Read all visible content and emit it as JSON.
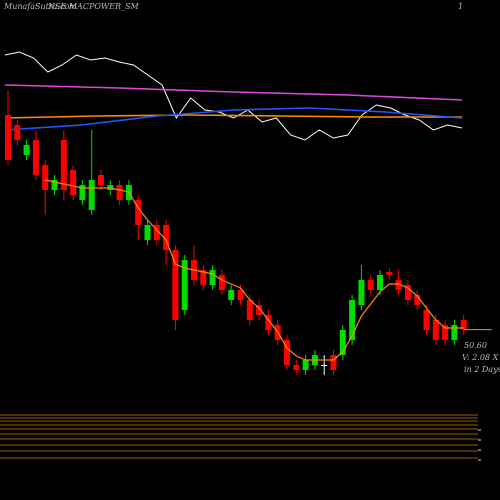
{
  "chart_data": {
    "type": "candlestick",
    "title": "MunafaSutra.com",
    "subtitle": "NSE MACPOWER_SM",
    "corner_label": "1",
    "price_label": "50.60",
    "volume_label": "V: 2.08 X",
    "period_label": "in 2 Days",
    "up_color": "#00dd00",
    "down_color": "#ff0000",
    "ma_color": "#ff8c00",
    "ylim": [
      8,
      133
    ],
    "open": [
      104.25,
      101.75,
      94.25,
      98,
      91.75,
      85.5,
      98,
      90.5,
      83,
      80.5,
      89.25,
      85.5,
      86.75,
      83,
      83,
      73,
      76.75,
      76.75,
      70.5,
      55.5,
      68,
      65.5,
      61.75,
      64.25,
      58,
      60.5,
      58,
      56.75,
      54.25,
      51.75,
      48,
      41.75,
      40.5,
      41.75,
      41.75,
      44.25,
      44.25,
      48,
      56.75,
      63,
      60.5,
      65,
      63,
      61.75,
      59.25,
      55.5,
      53,
      51.75,
      48,
      53
    ],
    "high": [
      110.5,
      103,
      98,
      100.5,
      93,
      89.25,
      100.5,
      91.75,
      88,
      100.5,
      90.5,
      88,
      88,
      88,
      84.25,
      78,
      78,
      78,
      71.75,
      69.25,
      71.75,
      66.75,
      66.75,
      65.5,
      61.75,
      61.75,
      59.25,
      58,
      55.5,
      53,
      49.25,
      43,
      44.25,
      45.5,
      44.25,
      45.5,
      51.75,
      59.25,
      66.75,
      64.25,
      65.5,
      66,
      65.5,
      63,
      60.5,
      56.75,
      54.25,
      53,
      53,
      54.25
    ],
    "low": [
      91.75,
      96.75,
      93,
      88,
      79.25,
      84.25,
      83,
      83,
      81.75,
      79.25,
      85.5,
      84.25,
      81.75,
      81.75,
      73,
      71.75,
      71.75,
      66.75,
      50.5,
      54.25,
      61.75,
      60.5,
      60.5,
      59.25,
      56.75,
      56.75,
      51.75,
      53,
      49.25,
      46.75,
      40.5,
      39.25,
      39.25,
      40.5,
      39.25,
      39.25,
      43,
      46.75,
      55.5,
      59.25,
      59.25,
      63,
      59.25,
      56.75,
      55.5,
      49.25,
      46.75,
      46.75,
      46.75,
      49.25
    ],
    "close": [
      93,
      98,
      96.75,
      89.25,
      85.5,
      88,
      85.5,
      84.25,
      86.75,
      88,
      86.75,
      86.75,
      83,
      86.75,
      76.75,
      76.75,
      73,
      70.5,
      53,
      68,
      63,
      61.75,
      65.5,
      60.5,
      60.5,
      58,
      53,
      54.25,
      50.5,
      48,
      41.75,
      40.5,
      43,
      44.25,
      41.75,
      40.5,
      50.5,
      58,
      63,
      60.5,
      64.25,
      64.25,
      60.5,
      58,
      56.75,
      50.5,
      48,
      48,
      51.75,
      50.6
    ],
    "ma": [
      null,
      null,
      null,
      null,
      88,
      87.5,
      87,
      86.5,
      86,
      86,
      86,
      86,
      85.5,
      85,
      81,
      78,
      75.5,
      73,
      67,
      66,
      65.5,
      65,
      64.5,
      63,
      62,
      61,
      58,
      56,
      53,
      50,
      46,
      44,
      43,
      43,
      43,
      43,
      45,
      49,
      54,
      57,
      60,
      62,
      62,
      61,
      59,
      56,
      53,
      51,
      51,
      51
    ],
    "indicator": {
      "ylim": [
        0,
        160
      ],
      "series": [
        {
          "color": "#ffffff",
          "values": [
            105,
            108,
            102,
            88,
            95,
            105,
            100,
            102,
            98,
            95,
            85,
            75,
            42,
            62,
            50,
            48,
            42,
            50,
            38,
            42,
            25,
            20,
            30,
            22,
            25,
            45,
            55,
            52,
            45,
            40,
            30,
            35,
            32
          ]
        },
        {
          "color": "#dd44dd",
          "values": [
            75,
            72,
            68,
            65,
            60
          ]
        },
        {
          "color": "#ff8c00",
          "values": [
            42,
            44,
            45,
            44,
            43,
            43
          ]
        },
        {
          "color": "#2255ff",
          "values": [
            30,
            35,
            44,
            50,
            52,
            48,
            42
          ]
        }
      ]
    }
  }
}
